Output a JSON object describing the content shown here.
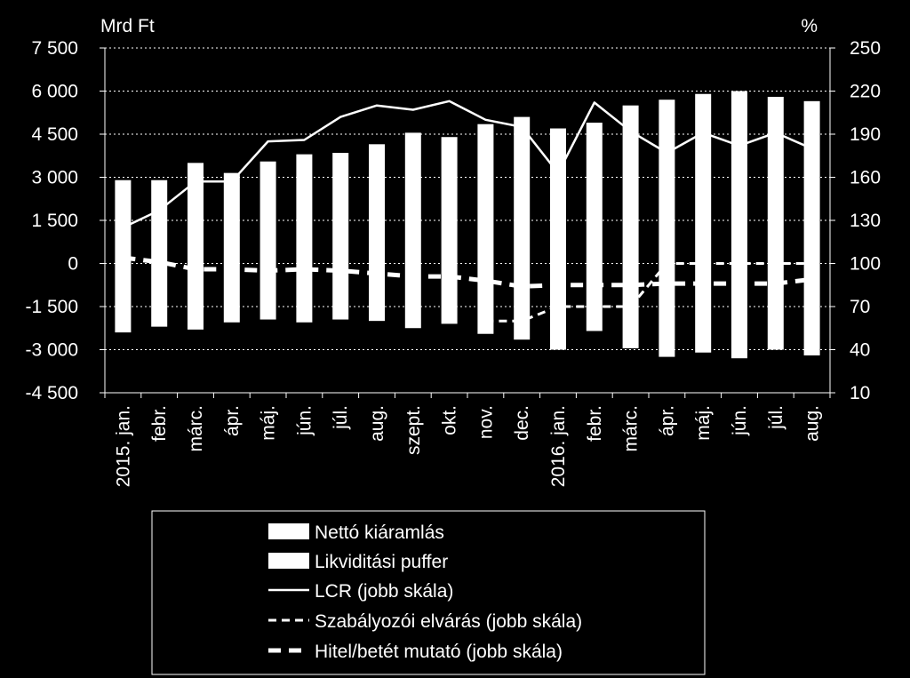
{
  "chart_data": {
    "type": "bar",
    "left_unit": "Mrd Ft",
    "right_unit": "%",
    "categories": [
      "2015. jan.",
      "febr.",
      "márc.",
      "ápr.",
      "máj.",
      "jún.",
      "júl.",
      "aug.",
      "szept.",
      "okt.",
      "nov.",
      "dec.",
      "2016. jan.",
      "febr.",
      "márc.",
      "ápr.",
      "máj.",
      "jún.",
      "júl.",
      "aug."
    ],
    "left_axis": {
      "min": -4500,
      "max": 7500,
      "step": 1500,
      "ticks": [
        "7 500",
        "6 000",
        "4 500",
        "3 000",
        "1 500",
        "0",
        "-1 500",
        "-3 000",
        "-4 500"
      ]
    },
    "right_axis": {
      "min": 10,
      "max": 250,
      "step": 30,
      "ticks": [
        "250",
        "220",
        "190",
        "160",
        "130",
        "100",
        "70",
        "40",
        "10"
      ]
    },
    "grid": true,
    "series": [
      {
        "name": "Nettó kiáramlás",
        "kind": "bar",
        "axis": "left",
        "values": [
          -2400,
          -2200,
          -2300,
          -2050,
          -1950,
          -2050,
          -1950,
          -2000,
          -2250,
          -2100,
          -2450,
          -2650,
          -3000,
          -2350,
          -2950,
          -3250,
          -3100,
          -3300,
          -3000,
          -3200
        ]
      },
      {
        "name": "Likviditási puffer",
        "kind": "bar",
        "axis": "left",
        "values": [
          2900,
          2900,
          3500,
          3150,
          3550,
          3800,
          3850,
          4150,
          4550,
          4400,
          4850,
          5100,
          4700,
          4900,
          5500,
          5700,
          5900,
          6000,
          5800,
          5650
        ]
      },
      {
        "name": "LCR (jobb skála)",
        "kind": "line",
        "style": "solid",
        "axis": "right",
        "values": [
          125,
          137,
          157,
          157,
          185,
          186,
          202,
          210,
          207,
          213,
          200,
          195,
          163,
          212,
          192,
          177,
          191,
          182,
          191,
          180
        ]
      },
      {
        "name": "Szabályozói elvárás (jobb skála)",
        "kind": "line",
        "style": "dashed",
        "axis": "right",
        "values": [
          null,
          null,
          null,
          null,
          null,
          null,
          null,
          null,
          null,
          null,
          60,
          60,
          70,
          70,
          70,
          100,
          100,
          100,
          100,
          100
        ]
      },
      {
        "name": "Hitel/betét mutató (jobb skála)",
        "kind": "line",
        "style": "thick-dashed",
        "axis": "right",
        "values": [
          104,
          101,
          96,
          96,
          95,
          96,
          95,
          93,
          91,
          91,
          88,
          84,
          85,
          85,
          85,
          86,
          86,
          86,
          86,
          89
        ]
      }
    ],
    "legend_placement": "bottom"
  }
}
